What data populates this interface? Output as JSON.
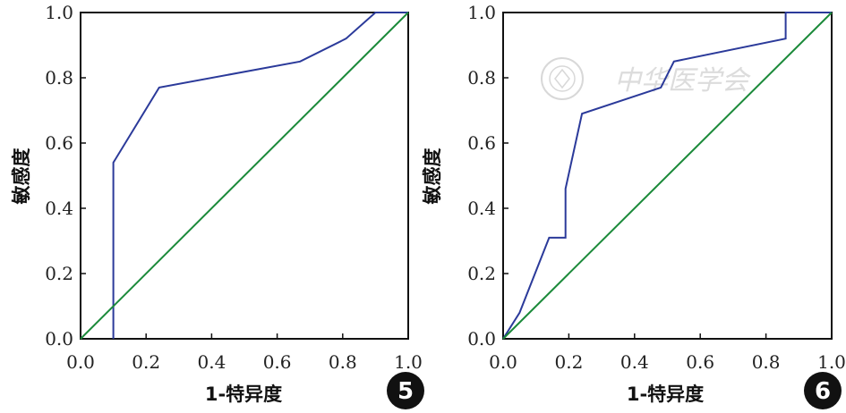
{
  "colors": {
    "roc": "#2b3a9a",
    "reference": "#1b8a3a",
    "axes": "#111111",
    "badge": "#111111"
  },
  "chart_data": [
    {
      "type": "line",
      "panel_badge": "5",
      "xlabel": "1-特异度",
      "ylabel": "敏感度",
      "xlim": [
        0,
        1
      ],
      "ylim": [
        0,
        1
      ],
      "x_ticks": [
        "0.0",
        "0.2",
        "0.4",
        "0.6",
        "0.8",
        "1.0"
      ],
      "y_ticks": [
        "0.0",
        "0.2",
        "0.4",
        "0.6",
        "0.8",
        "1.0"
      ],
      "grid": false,
      "series": [
        {
          "role": "roc",
          "x": [
            0.1,
            0.1,
            0.24,
            0.67,
            0.81,
            0.9,
            1.0
          ],
          "y": [
            0.0,
            0.54,
            0.77,
            0.85,
            0.92,
            1.0,
            1.0
          ]
        },
        {
          "role": "reference",
          "x": [
            0,
            1
          ],
          "y": [
            0,
            1
          ]
        }
      ]
    },
    {
      "type": "line",
      "panel_badge": "6",
      "xlabel": "1-特异度",
      "ylabel": "敏感度",
      "xlim": [
        0,
        1
      ],
      "ylim": [
        0,
        1
      ],
      "x_ticks": [
        "0.0",
        "0.2",
        "0.4",
        "0.6",
        "0.8",
        "1.0"
      ],
      "y_ticks": [
        "0.0",
        "0.2",
        "0.4",
        "0.6",
        "0.8",
        "1.0"
      ],
      "grid": false,
      "series": [
        {
          "role": "roc",
          "x": [
            0.0,
            0.05,
            0.14,
            0.19,
            0.19,
            0.24,
            0.48,
            0.52,
            0.86,
            0.86,
            1.0
          ],
          "y": [
            0.0,
            0.08,
            0.31,
            0.31,
            0.46,
            0.69,
            0.77,
            0.85,
            0.92,
            1.0,
            1.0
          ]
        },
        {
          "role": "reference",
          "x": [
            0,
            1
          ],
          "y": [
            0,
            1
          ]
        }
      ]
    }
  ],
  "watermark": {
    "text": "中华医学会"
  }
}
